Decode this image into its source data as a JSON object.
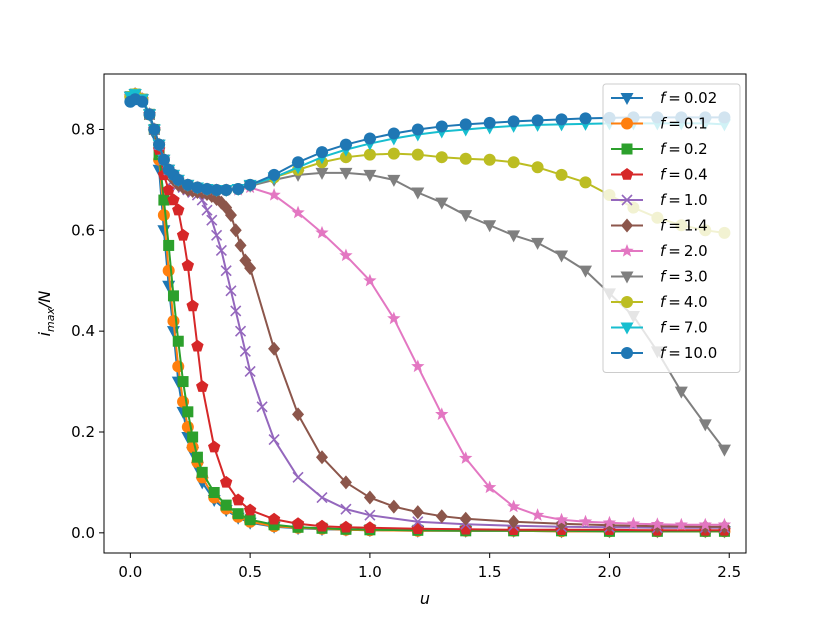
{
  "chart_data": {
    "type": "line",
    "xlabel": "u",
    "ylabel": "i_max/N",
    "xlim": [
      -0.11,
      2.57
    ],
    "ylim": [
      -0.04,
      0.91
    ],
    "xticks": [
      0.0,
      0.5,
      1.0,
      1.5,
      2.0,
      2.5
    ],
    "xtick_labels": [
      "0.0",
      "0.5",
      "1.0",
      "1.5",
      "2.0",
      "2.5"
    ],
    "yticks": [
      0.0,
      0.2,
      0.4,
      0.6,
      0.8
    ],
    "ytick_labels": [
      "0.0",
      "0.2",
      "0.4",
      "0.6",
      "0.8"
    ],
    "legend_position": "top-right",
    "series": [
      {
        "name": "f = 0.02",
        "label_var": "f",
        "label_val": "0.02",
        "color": "#1f77b4",
        "marker": "tri_down",
        "x": [
          0.0,
          0.02,
          0.05,
          0.08,
          0.1,
          0.12,
          0.14,
          0.16,
          0.18,
          0.2,
          0.22,
          0.24,
          0.26,
          0.28,
          0.3,
          0.35,
          0.4,
          0.45,
          0.5,
          0.6,
          0.7,
          0.8,
          0.9,
          1.0,
          1.2,
          1.4,
          1.6,
          1.8,
          2.0,
          2.2,
          2.4,
          2.48
        ],
        "y": [
          0.865,
          0.87,
          0.86,
          0.83,
          0.79,
          0.72,
          0.6,
          0.49,
          0.4,
          0.3,
          0.24,
          0.19,
          0.16,
          0.13,
          0.1,
          0.065,
          0.045,
          0.03,
          0.02,
          0.012,
          0.009,
          0.007,
          0.006,
          0.005,
          0.004,
          0.004,
          0.004,
          0.003,
          0.003,
          0.003,
          0.003,
          0.003
        ]
      },
      {
        "name": "f = 0.1",
        "label_var": "f",
        "label_val": "0.1",
        "color": "#ff7f0e",
        "marker": "circle",
        "x": [
          0.0,
          0.02,
          0.05,
          0.08,
          0.1,
          0.12,
          0.14,
          0.16,
          0.18,
          0.2,
          0.22,
          0.24,
          0.26,
          0.28,
          0.3,
          0.35,
          0.4,
          0.45,
          0.5,
          0.6,
          0.7,
          0.8,
          0.9,
          1.0,
          1.2,
          1.4,
          1.6,
          1.8,
          2.0,
          2.2,
          2.4,
          2.48
        ],
        "y": [
          0.865,
          0.87,
          0.86,
          0.83,
          0.8,
          0.74,
          0.63,
          0.52,
          0.42,
          0.33,
          0.26,
          0.21,
          0.17,
          0.14,
          0.11,
          0.07,
          0.048,
          0.032,
          0.022,
          0.013,
          0.01,
          0.008,
          0.006,
          0.005,
          0.004,
          0.004,
          0.004,
          0.003,
          0.003,
          0.003,
          0.003,
          0.003
        ]
      },
      {
        "name": "f = 0.2",
        "label_var": "f",
        "label_val": "0.2",
        "color": "#2ca02c",
        "marker": "square",
        "x": [
          0.0,
          0.02,
          0.05,
          0.08,
          0.1,
          0.12,
          0.14,
          0.16,
          0.18,
          0.2,
          0.22,
          0.24,
          0.26,
          0.28,
          0.3,
          0.35,
          0.4,
          0.45,
          0.5,
          0.6,
          0.7,
          0.8,
          0.9,
          1.0,
          1.2,
          1.4,
          1.6,
          1.8,
          2.0,
          2.2,
          2.4,
          2.48
        ],
        "y": [
          0.865,
          0.87,
          0.86,
          0.83,
          0.8,
          0.75,
          0.66,
          0.57,
          0.47,
          0.38,
          0.3,
          0.24,
          0.19,
          0.15,
          0.12,
          0.08,
          0.055,
          0.038,
          0.026,
          0.016,
          0.011,
          0.009,
          0.007,
          0.006,
          0.005,
          0.004,
          0.004,
          0.004,
          0.003,
          0.003,
          0.003,
          0.003
        ]
      },
      {
        "name": "f = 0.4",
        "label_var": "f",
        "label_val": "0.4",
        "color": "#d62728",
        "marker": "pentagon",
        "x": [
          0.0,
          0.02,
          0.05,
          0.08,
          0.1,
          0.12,
          0.14,
          0.16,
          0.18,
          0.2,
          0.22,
          0.24,
          0.26,
          0.28,
          0.3,
          0.35,
          0.4,
          0.45,
          0.5,
          0.6,
          0.7,
          0.8,
          0.9,
          1.0,
          1.2,
          1.4,
          1.6,
          1.8,
          2.0,
          2.2,
          2.4,
          2.48
        ],
        "y": [
          0.865,
          0.87,
          0.86,
          0.83,
          0.8,
          0.76,
          0.71,
          0.68,
          0.66,
          0.64,
          0.59,
          0.53,
          0.45,
          0.37,
          0.29,
          0.17,
          0.1,
          0.065,
          0.045,
          0.027,
          0.018,
          0.013,
          0.011,
          0.01,
          0.008,
          0.007,
          0.006,
          0.006,
          0.006,
          0.005,
          0.005,
          0.005
        ]
      },
      {
        "name": "f = 1.0",
        "label_var": "f",
        "label_val": "1.0",
        "color": "#9467bd",
        "marker": "x",
        "x": [
          0.0,
          0.02,
          0.05,
          0.08,
          0.1,
          0.12,
          0.14,
          0.16,
          0.18,
          0.2,
          0.22,
          0.24,
          0.26,
          0.28,
          0.3,
          0.32,
          0.34,
          0.36,
          0.38,
          0.4,
          0.42,
          0.44,
          0.46,
          0.48,
          0.5,
          0.55,
          0.6,
          0.7,
          0.8,
          0.9,
          1.0,
          1.2,
          1.4,
          1.6,
          1.8,
          2.0,
          2.2,
          2.4,
          2.48
        ],
        "y": [
          0.865,
          0.87,
          0.86,
          0.83,
          0.8,
          0.77,
          0.74,
          0.72,
          0.7,
          0.69,
          0.685,
          0.68,
          0.675,
          0.67,
          0.66,
          0.64,
          0.62,
          0.59,
          0.56,
          0.52,
          0.48,
          0.44,
          0.4,
          0.36,
          0.32,
          0.25,
          0.185,
          0.11,
          0.07,
          0.047,
          0.035,
          0.022,
          0.017,
          0.014,
          0.012,
          0.011,
          0.01,
          0.01,
          0.01
        ]
      },
      {
        "name": "f = 1.4",
        "label_var": "f",
        "label_val": "1.4",
        "color": "#8c564b",
        "marker": "diamond",
        "x": [
          0.0,
          0.02,
          0.05,
          0.08,
          0.1,
          0.12,
          0.14,
          0.16,
          0.18,
          0.2,
          0.22,
          0.24,
          0.26,
          0.28,
          0.3,
          0.32,
          0.34,
          0.36,
          0.38,
          0.4,
          0.42,
          0.44,
          0.46,
          0.48,
          0.5,
          0.6,
          0.7,
          0.8,
          0.9,
          1.0,
          1.1,
          1.2,
          1.3,
          1.4,
          1.6,
          1.8,
          2.0,
          2.2,
          2.4,
          2.48
        ],
        "y": [
          0.865,
          0.87,
          0.86,
          0.83,
          0.8,
          0.77,
          0.74,
          0.72,
          0.7,
          0.69,
          0.685,
          0.68,
          0.678,
          0.676,
          0.675,
          0.672,
          0.668,
          0.662,
          0.655,
          0.645,
          0.63,
          0.6,
          0.57,
          0.54,
          0.525,
          0.365,
          0.235,
          0.15,
          0.1,
          0.07,
          0.052,
          0.041,
          0.033,
          0.028,
          0.022,
          0.018,
          0.015,
          0.013,
          0.012,
          0.012
        ]
      },
      {
        "name": "f = 2.0",
        "label_var": "f",
        "label_val": "2.0",
        "color": "#e377c2",
        "marker": "star",
        "x": [
          0.0,
          0.02,
          0.05,
          0.08,
          0.1,
          0.12,
          0.14,
          0.16,
          0.18,
          0.2,
          0.24,
          0.28,
          0.32,
          0.36,
          0.4,
          0.45,
          0.5,
          0.6,
          0.7,
          0.8,
          0.9,
          1.0,
          1.1,
          1.2,
          1.3,
          1.4,
          1.5,
          1.6,
          1.7,
          1.8,
          1.9,
          2.0,
          2.1,
          2.2,
          2.3,
          2.4,
          2.48
        ],
        "y": [
          0.865,
          0.87,
          0.86,
          0.83,
          0.8,
          0.77,
          0.74,
          0.72,
          0.71,
          0.7,
          0.69,
          0.685,
          0.682,
          0.68,
          0.68,
          0.68,
          0.685,
          0.67,
          0.635,
          0.595,
          0.55,
          0.5,
          0.425,
          0.33,
          0.235,
          0.148,
          0.09,
          0.052,
          0.035,
          0.026,
          0.022,
          0.02,
          0.018,
          0.017,
          0.016,
          0.016,
          0.016
        ]
      },
      {
        "name": "f = 3.0",
        "label_var": "f",
        "label_val": "3.0",
        "color": "#7f7f7f",
        "marker": "tri_down",
        "x": [
          0.0,
          0.02,
          0.05,
          0.08,
          0.1,
          0.12,
          0.14,
          0.16,
          0.18,
          0.2,
          0.24,
          0.28,
          0.32,
          0.36,
          0.4,
          0.45,
          0.5,
          0.6,
          0.7,
          0.8,
          0.9,
          1.0,
          1.1,
          1.2,
          1.3,
          1.4,
          1.5,
          1.6,
          1.7,
          1.8,
          1.9,
          2.0,
          2.1,
          2.2,
          2.3,
          2.4,
          2.48
        ],
        "y": [
          0.865,
          0.87,
          0.86,
          0.83,
          0.8,
          0.77,
          0.74,
          0.72,
          0.71,
          0.7,
          0.69,
          0.685,
          0.682,
          0.68,
          0.68,
          0.682,
          0.688,
          0.7,
          0.71,
          0.714,
          0.714,
          0.71,
          0.7,
          0.675,
          0.655,
          0.63,
          0.61,
          0.59,
          0.575,
          0.55,
          0.52,
          0.475,
          0.43,
          0.36,
          0.28,
          0.215,
          0.165
        ]
      },
      {
        "name": "f = 4.0",
        "label_var": "f",
        "label_val": "4.0",
        "color": "#bcbd22",
        "marker": "circle",
        "x": [
          0.0,
          0.02,
          0.05,
          0.08,
          0.1,
          0.12,
          0.14,
          0.16,
          0.18,
          0.2,
          0.24,
          0.28,
          0.32,
          0.36,
          0.4,
          0.45,
          0.5,
          0.6,
          0.7,
          0.8,
          0.9,
          1.0,
          1.1,
          1.2,
          1.3,
          1.4,
          1.5,
          1.6,
          1.7,
          1.8,
          1.9,
          2.0,
          2.1,
          2.2,
          2.3,
          2.4,
          2.48
        ],
        "y": [
          0.865,
          0.87,
          0.86,
          0.83,
          0.8,
          0.77,
          0.74,
          0.72,
          0.71,
          0.7,
          0.69,
          0.685,
          0.682,
          0.68,
          0.68,
          0.682,
          0.69,
          0.705,
          0.72,
          0.735,
          0.745,
          0.75,
          0.752,
          0.75,
          0.745,
          0.742,
          0.74,
          0.735,
          0.725,
          0.71,
          0.695,
          0.67,
          0.645,
          0.625,
          0.61,
          0.6,
          0.595
        ]
      },
      {
        "name": "f = 7.0",
        "label_var": "f",
        "label_val": "7.0",
        "color": "#17becf",
        "marker": "tri_down",
        "x": [
          0.0,
          0.02,
          0.05,
          0.08,
          0.1,
          0.12,
          0.14,
          0.16,
          0.18,
          0.2,
          0.24,
          0.28,
          0.32,
          0.36,
          0.4,
          0.45,
          0.5,
          0.6,
          0.7,
          0.8,
          0.9,
          1.0,
          1.1,
          1.2,
          1.3,
          1.4,
          1.5,
          1.6,
          1.7,
          1.8,
          1.9,
          2.0,
          2.1,
          2.2,
          2.3,
          2.4,
          2.48
        ],
        "y": [
          0.865,
          0.87,
          0.86,
          0.83,
          0.8,
          0.77,
          0.74,
          0.72,
          0.71,
          0.7,
          0.69,
          0.685,
          0.682,
          0.68,
          0.68,
          0.682,
          0.69,
          0.705,
          0.725,
          0.745,
          0.76,
          0.772,
          0.782,
          0.79,
          0.796,
          0.8,
          0.804,
          0.807,
          0.809,
          0.81,
          0.811,
          0.812,
          0.812,
          0.812,
          0.812,
          0.812,
          0.81
        ]
      },
      {
        "name": "f = 10.0",
        "label_var": "f",
        "label_val": "10.0",
        "color": "#1f77b4",
        "marker": "circle",
        "x": [
          0.0,
          0.02,
          0.05,
          0.08,
          0.1,
          0.12,
          0.14,
          0.16,
          0.18,
          0.2,
          0.24,
          0.28,
          0.32,
          0.36,
          0.4,
          0.45,
          0.5,
          0.6,
          0.7,
          0.8,
          0.9,
          1.0,
          1.1,
          1.2,
          1.3,
          1.4,
          1.5,
          1.6,
          1.7,
          1.8,
          1.9,
          2.0,
          2.1,
          2.2,
          2.3,
          2.4,
          2.48
        ],
        "y": [
          0.855,
          0.86,
          0.855,
          0.83,
          0.8,
          0.77,
          0.74,
          0.72,
          0.71,
          0.7,
          0.69,
          0.685,
          0.682,
          0.68,
          0.68,
          0.682,
          0.69,
          0.71,
          0.735,
          0.755,
          0.77,
          0.782,
          0.792,
          0.8,
          0.806,
          0.81,
          0.813,
          0.816,
          0.818,
          0.82,
          0.822,
          0.823,
          0.824,
          0.824,
          0.824,
          0.824,
          0.824
        ]
      }
    ]
  }
}
